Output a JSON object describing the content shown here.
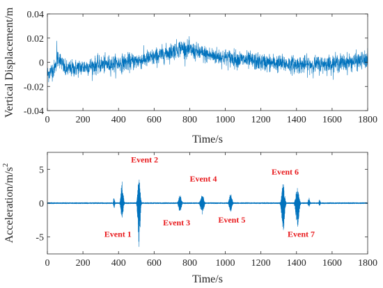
{
  "colors": {
    "series": "#0072bd",
    "frame": "#262626",
    "event": "#e8191c"
  },
  "chart_data": [
    {
      "type": "line",
      "xlabel": "Time/s",
      "ylabel": "Vertical Displacement/m",
      "xlim": [
        0,
        1800
      ],
      "ylim": [
        -0.04,
        0.04
      ],
      "xticks": [
        0,
        200,
        400,
        600,
        800,
        1000,
        1200,
        1400,
        1600,
        1800
      ],
      "yticks": [
        -0.04,
        -0.02,
        0,
        0.02,
        0.04
      ],
      "ytick_labels": [
        "-0.04",
        "-0.02",
        "0",
        "0.02",
        "0.04"
      ],
      "grid": false,
      "trend": {
        "x": [
          0,
          40,
          60,
          100,
          200,
          300,
          400,
          500,
          600,
          700,
          750,
          800,
          850,
          900,
          1000,
          1100,
          1200,
          1300,
          1400,
          1500,
          1600,
          1700,
          1800
        ],
        "y": [
          -0.01,
          -0.005,
          0.005,
          -0.006,
          -0.004,
          -0.002,
          -0.001,
          0.001,
          0.004,
          0.009,
          0.012,
          0.01,
          0.008,
          0.006,
          0.004,
          0.002,
          0.0,
          -0.001,
          -0.002,
          -0.002,
          -0.001,
          0.0,
          0.002
        ]
      },
      "noise_amplitude": 0.008,
      "range_min": -0.03,
      "range_max": 0.029
    },
    {
      "type": "line",
      "xlabel": "Time/s",
      "ylabel": "Acceleration/m/s",
      "ylabel_superscript": "2",
      "xlim": [
        0,
        1800
      ],
      "ylim": [
        -7.5,
        7.5
      ],
      "xticks": [
        0,
        200,
        400,
        600,
        800,
        1000,
        1200,
        1400,
        1600,
        1800
      ],
      "yticks": [
        -5,
        0,
        5
      ],
      "ytick_labels": [
        "-5",
        "0",
        "5"
      ],
      "grid": false,
      "baseline_noise": 0.12,
      "bursts": [
        {
          "x": 375,
          "width": 10,
          "peak": 1.0
        },
        {
          "x": 420,
          "width": 18,
          "peak": 3.4
        },
        {
          "x": 515,
          "width": 18,
          "peak": 4.4,
          "min": -6.8
        },
        {
          "x": 745,
          "width": 22,
          "peak": 1.3,
          "min": -1.4
        },
        {
          "x": 870,
          "width": 25,
          "peak": 1.5,
          "min": -1.8
        },
        {
          "x": 1030,
          "width": 22,
          "peak": 1.6,
          "min": -1.4
        },
        {
          "x": 1325,
          "width": 22,
          "peak": 2.9,
          "min": -4.5
        },
        {
          "x": 1405,
          "width": 25,
          "peak": 2.3,
          "min": -3.6
        },
        {
          "x": 1470,
          "width": 14,
          "peak": 0.8
        },
        {
          "x": 1530,
          "width": 10,
          "peak": 0.6
        }
      ],
      "annotations": [
        {
          "text": "Event 1",
          "x": 320,
          "y": -5.0
        },
        {
          "text": "Event 2",
          "x": 470,
          "y": 6.0
        },
        {
          "text": "Event 3",
          "x": 650,
          "y": -3.3
        },
        {
          "text": "Event 4",
          "x": 800,
          "y": 3.2
        },
        {
          "text": "Event 5",
          "x": 960,
          "y": -2.9
        },
        {
          "text": "Event 6",
          "x": 1260,
          "y": 4.2
        },
        {
          "text": "Event 7",
          "x": 1350,
          "y": -5.0
        }
      ]
    }
  ]
}
